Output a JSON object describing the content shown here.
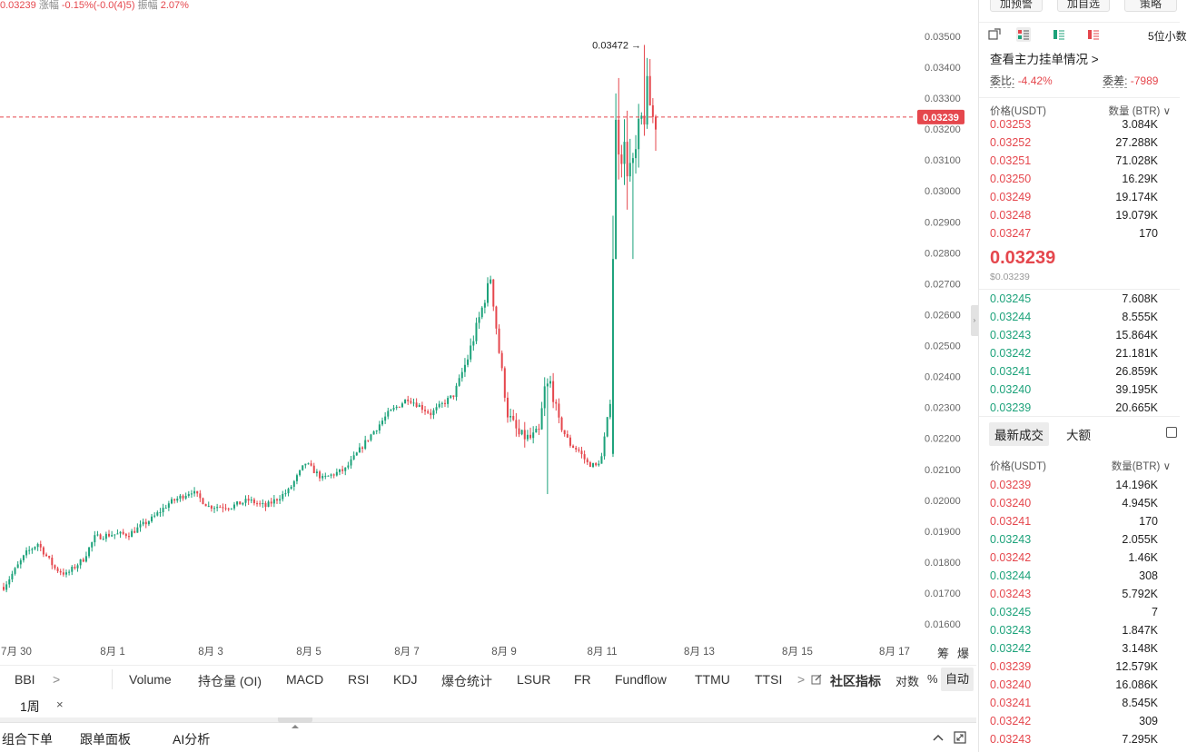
{
  "top_info": {
    "price": "0.03239",
    "change_label": "涨幅",
    "change_value": "-0.15%(-0.0(4)5)",
    "amp_label": "振幅",
    "amp_value": "2.07%"
  },
  "chart_data": {
    "type": "candlestick",
    "y_ticks": [
      "0.03500",
      "0.03400",
      "0.03300",
      "0.03200",
      "0.03100",
      "0.03000",
      "0.02900",
      "0.02800",
      "0.02700",
      "0.02600",
      "0.02500",
      "0.02400",
      "0.02300",
      "0.02200",
      "0.02100",
      "0.02000",
      "0.01900",
      "0.01800",
      "0.01700",
      "0.01600"
    ],
    "ylim": [
      0.01565,
      0.03535
    ],
    "x_ticks": [
      "7月 30",
      "8月 1",
      "8月 3",
      "8月 5",
      "8月 7",
      "8月 9",
      "8月 11",
      "8月 13",
      "8月 15",
      "8月 17"
    ],
    "current_price_label": "0.03239",
    "current_price": 0.03239,
    "high_annotation": "0.03472 →",
    "high_value": 0.03472,
    "up_color": "#1ca27a",
    "down_color": "#e5474d",
    "trend_anchors": [
      [
        0,
        0.0172
      ],
      [
        8,
        0.0183
      ],
      [
        12,
        0.0186
      ],
      [
        18,
        0.0178
      ],
      [
        22,
        0.0176
      ],
      [
        28,
        0.0181
      ],
      [
        32,
        0.0188
      ],
      [
        38,
        0.0189
      ],
      [
        44,
        0.0189
      ],
      [
        52,
        0.0194
      ],
      [
        58,
        0.0199
      ],
      [
        66,
        0.0203
      ],
      [
        72,
        0.0198
      ],
      [
        80,
        0.0198
      ],
      [
        86,
        0.02
      ],
      [
        92,
        0.0198
      ],
      [
        100,
        0.0203
      ],
      [
        106,
        0.0212
      ],
      [
        112,
        0.0207
      ],
      [
        120,
        0.021
      ],
      [
        128,
        0.022
      ],
      [
        135,
        0.0228
      ],
      [
        142,
        0.0233
      ],
      [
        150,
        0.0228
      ],
      [
        158,
        0.0234
      ],
      [
        163,
        0.0246
      ],
      [
        168,
        0.0262
      ],
      [
        171,
        0.0272
      ],
      [
        174,
        0.0248
      ],
      [
        177,
        0.0228
      ],
      [
        181,
        0.0221
      ],
      [
        185,
        0.022
      ],
      [
        188,
        0.0222
      ],
      [
        190,
        0.0236
      ],
      [
        192,
        0.0238
      ],
      [
        195,
        0.0225
      ],
      [
        199,
        0.0218
      ],
      [
        202,
        0.0216
      ],
      [
        205,
        0.0212
      ],
      [
        208,
        0.0211
      ],
      [
        210,
        0.0214
      ],
      [
        213,
        0.0232
      ],
      [
        215,
        0.032
      ],
      [
        218,
        0.0312
      ],
      [
        221,
        0.0305
      ],
      [
        224,
        0.0322
      ],
      [
        226,
        0.033
      ],
      [
        229,
        0.0324
      ]
    ],
    "candle_count": 230
  },
  "indicators": {
    "left_items": [
      "BBI",
      ">"
    ],
    "items": [
      "Volume",
      "持仓量 (OI)",
      "MACD",
      "RSI",
      "KDJ",
      "爆仓统计",
      "LSUR",
      "FR",
      "Fundflow",
      "TTMU",
      "TTSI",
      ">"
    ],
    "community": "社区指标",
    "log": "对数",
    "percent": "%",
    "auto": "自动"
  },
  "interval": {
    "label": "1周",
    "close": "×"
  },
  "axis_corner": [
    "筹",
    "爆"
  ],
  "bottom_tabs": [
    "组合下单",
    "跟单面板",
    "AI分析"
  ],
  "right_panel": {
    "buttons": [
      "加预警",
      "加自选",
      "策略"
    ],
    "decimals": "5位小数",
    "main_orders": "查看主力挂单情况 >",
    "ratio_label": "委比:",
    "ratio_value": "-4.42%",
    "diff_label": "委差:",
    "diff_value": "-7989",
    "book_header": {
      "price": "价格(USDT)",
      "qty": "数量 (BTR) ∨"
    },
    "asks": [
      {
        "p": "0.03253",
        "q": "3.084K"
      },
      {
        "p": "0.03252",
        "q": "27.288K"
      },
      {
        "p": "0.03251",
        "q": "71.028K"
      },
      {
        "p": "0.03250",
        "q": "16.29K"
      },
      {
        "p": "0.03249",
        "q": "19.174K"
      },
      {
        "p": "0.03248",
        "q": "19.079K"
      },
      {
        "p": "0.03247",
        "q": "170"
      }
    ],
    "last_price": "0.03239",
    "last_usd": "$0.03239",
    "bids": [
      {
        "p": "0.03245",
        "q": "7.608K"
      },
      {
        "p": "0.03244",
        "q": "8.555K"
      },
      {
        "p": "0.03243",
        "q": "15.864K"
      },
      {
        "p": "0.03242",
        "q": "21.181K"
      },
      {
        "p": "0.03241",
        "q": "26.859K"
      },
      {
        "p": "0.03240",
        "q": "39.195K"
      },
      {
        "p": "0.03239",
        "q": "20.665K"
      }
    ],
    "trade_tabs": [
      "最新成交",
      "大额"
    ],
    "trades_header": {
      "price": "价格(USDT)",
      "qty": "数量(BTR) ∨"
    },
    "trades": [
      {
        "p": "0.03239",
        "q": "14.196K",
        "side": "sell"
      },
      {
        "p": "0.03240",
        "q": "4.945K",
        "side": "sell"
      },
      {
        "p": "0.03241",
        "q": "170",
        "side": "sell"
      },
      {
        "p": "0.03243",
        "q": "2.055K",
        "side": "buy"
      },
      {
        "p": "0.03242",
        "q": "1.46K",
        "side": "sell"
      },
      {
        "p": "0.03244",
        "q": "308",
        "side": "buy"
      },
      {
        "p": "0.03243",
        "q": "5.792K",
        "side": "sell"
      },
      {
        "p": "0.03245",
        "q": "7",
        "side": "buy"
      },
      {
        "p": "0.03243",
        "q": "1.847K",
        "side": "buy"
      },
      {
        "p": "0.03242",
        "q": "3.148K",
        "side": "buy"
      },
      {
        "p": "0.03239",
        "q": "12.579K",
        "side": "sell"
      },
      {
        "p": "0.03240",
        "q": "16.086K",
        "side": "sell"
      },
      {
        "p": "0.03241",
        "q": "8.545K",
        "side": "sell"
      },
      {
        "p": "0.03242",
        "q": "309",
        "side": "sell"
      },
      {
        "p": "0.03243",
        "q": "7.295K",
        "side": "sell"
      }
    ]
  }
}
